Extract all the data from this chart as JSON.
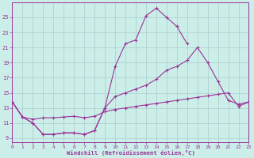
{
  "xlabel": "Windchill (Refroidissement éolien,°C)",
  "background_color": "#cceee8",
  "grid_color": "#aacccc",
  "line_color": "#993399",
  "x_ticks": [
    0,
    1,
    2,
    3,
    4,
    5,
    6,
    7,
    8,
    9,
    10,
    11,
    12,
    13,
    14,
    15,
    16,
    17,
    18,
    19,
    20,
    21,
    22,
    23
  ],
  "y_ticks": [
    9,
    11,
    13,
    15,
    17,
    19,
    21,
    23,
    25
  ],
  "xlim": [
    0,
    23
  ],
  "ylim": [
    8.5,
    27.0
  ],
  "line1_x": [
    0,
    1,
    2,
    3,
    4,
    5,
    6,
    7,
    8,
    9,
    10,
    11,
    12,
    13,
    14,
    15,
    16,
    17
  ],
  "line1_y": [
    13.8,
    11.8,
    11.0,
    9.5,
    9.5,
    9.7,
    9.7,
    9.5,
    10.0,
    13.0,
    18.5,
    21.5,
    22.0,
    25.2,
    26.2,
    25.0,
    23.8,
    21.5
  ],
  "line2_x": [
    0,
    1,
    2,
    3,
    4,
    5,
    6,
    7,
    8,
    9,
    10,
    11,
    12,
    13,
    14,
    15,
    16,
    17,
    18,
    19,
    20,
    21,
    22,
    23
  ],
  "line2_y": [
    13.8,
    11.8,
    11.0,
    9.5,
    9.5,
    9.7,
    9.7,
    9.5,
    10.0,
    13.0,
    14.5,
    15.0,
    15.5,
    16.0,
    16.8,
    18.0,
    18.5,
    19.3,
    21.0,
    19.0,
    16.5,
    14.0,
    13.5,
    13.8
  ],
  "line3_x": [
    0,
    1,
    2,
    3,
    4,
    5,
    6,
    7,
    8,
    9,
    10,
    11,
    12,
    13,
    14,
    15,
    16,
    17,
    18,
    19,
    20,
    21,
    22,
    23
  ],
  "line3_y": [
    13.8,
    11.8,
    11.5,
    11.7,
    11.7,
    11.8,
    11.9,
    11.7,
    11.9,
    12.5,
    12.8,
    13.0,
    13.2,
    13.4,
    13.6,
    13.8,
    14.0,
    14.2,
    14.4,
    14.6,
    14.8,
    15.0,
    13.2,
    13.8
  ]
}
